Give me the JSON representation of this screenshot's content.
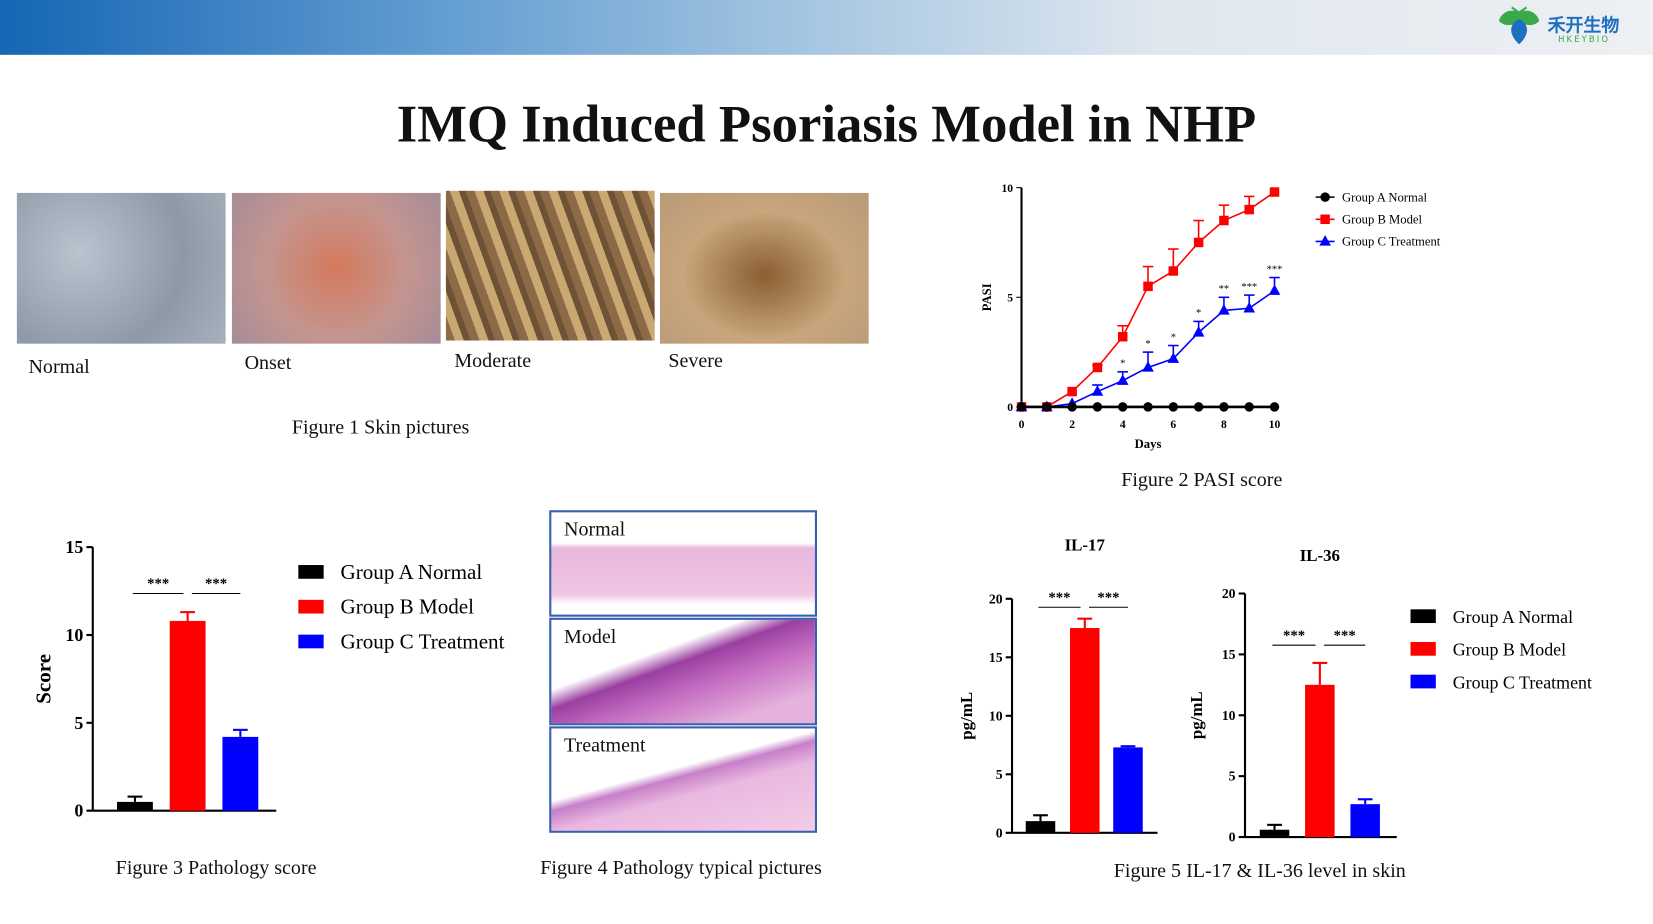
{
  "logo": {
    "cn": "禾开生物",
    "en": "HKEYBIO"
  },
  "title": "IMQ Induced Psoriasis Model in NHP",
  "figure1": {
    "caption": "Figure 1 Skin pictures",
    "labels": [
      "Normal",
      "Onset",
      "Moderate",
      "Severe"
    ]
  },
  "figure2": {
    "caption": "Figure 2 PASI score"
  },
  "figure3": {
    "caption": "Figure 3 Pathology score"
  },
  "figure4": {
    "caption": "Figure 4 Pathology typical pictures",
    "labels": [
      "Normal",
      "Model",
      "Treatment"
    ]
  },
  "figure5": {
    "caption": "Figure 5 IL-17 & IL-36 level in skin"
  },
  "colors": {
    "A": "#000000",
    "B": "#ff0000",
    "C": "#0000ff"
  },
  "chart_data": [
    {
      "type": "line",
      "ylabel": "PASI",
      "xlabel": "Days",
      "x": [
        0,
        1,
        2,
        3,
        4,
        5,
        6,
        7,
        8,
        9,
        10
      ],
      "xticks": [
        0,
        2,
        4,
        6,
        8,
        10
      ],
      "yticks": [
        0,
        5,
        10
      ],
      "xlim": [
        0,
        10
      ],
      "ylim": [
        0,
        10
      ],
      "legend": "top-right",
      "series": [
        {
          "name": "Group A Normal",
          "marker": "circle",
          "values": [
            0,
            0,
            0,
            0,
            0,
            0,
            0,
            0,
            0,
            0,
            0
          ],
          "err": [
            0,
            0,
            0,
            0,
            0,
            0,
            0,
            0,
            0,
            0,
            0
          ]
        },
        {
          "name": "Group B Model",
          "marker": "square",
          "values": [
            0,
            0,
            0.7,
            1.8,
            3.2,
            5.5,
            6.2,
            7.5,
            8.5,
            9.0,
            9.8
          ],
          "err": [
            0,
            0,
            0,
            0.1,
            0.5,
            0.9,
            1.0,
            1.0,
            0.7,
            0.6,
            0
          ]
        },
        {
          "name": "Group C Treatment",
          "marker": "triangle",
          "values": [
            0,
            0,
            0.15,
            0.7,
            1.2,
            1.8,
            2.2,
            3.4,
            4.4,
            4.5,
            5.3
          ],
          "err": [
            0,
            0,
            0,
            0.3,
            0.4,
            0.7,
            0.6,
            0.5,
            0.6,
            0.6,
            0.6
          ]
        }
      ],
      "annotations": [
        "",
        "",
        "",
        "",
        "*",
        "*",
        "*",
        "*",
        "**",
        "***",
        "***"
      ]
    },
    {
      "type": "bar",
      "title": "",
      "ylabel": "Score",
      "yticks": [
        0,
        5,
        10,
        15
      ],
      "ylim": [
        0,
        15
      ],
      "categories": [
        "Group A Normal",
        "Group B Model",
        "Group C Treatment"
      ],
      "values": [
        0.5,
        10.8,
        4.2
      ],
      "err": [
        0.3,
        0.5,
        0.4
      ],
      "sig": [
        "***",
        "***"
      ],
      "legend": "right"
    },
    {
      "type": "bar",
      "title": "IL-17",
      "ylabel": "pg/mL",
      "yticks": [
        0,
        5,
        10,
        15,
        20
      ],
      "ylim": [
        0,
        20
      ],
      "categories": [
        "Group A Normal",
        "Group B Model",
        "Group C Treatment"
      ],
      "values": [
        1.0,
        17.5,
        7.3
      ],
      "err": [
        0.5,
        0.8,
        0.1
      ],
      "sig": [
        "***",
        "***"
      ]
    },
    {
      "type": "bar",
      "title": "IL-36",
      "ylabel": "pg/mL",
      "yticks": [
        0,
        5,
        10,
        15,
        20
      ],
      "ylim": [
        0,
        20
      ],
      "categories": [
        "Group A Normal",
        "Group B Model",
        "Group C Treatment"
      ],
      "values": [
        0.6,
        12.5,
        2.7
      ],
      "err": [
        0.4,
        1.8,
        0.4
      ],
      "sig": [
        "***",
        "***"
      ],
      "legend": "right"
    }
  ]
}
